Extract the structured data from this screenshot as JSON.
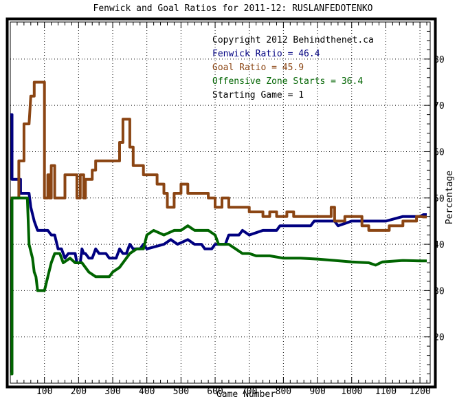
{
  "chart_data": {
    "type": "line",
    "title": "Fenwick and Goal Ratios for 2011-12: RUSLANFEDOTENKO",
    "xlabel": "Game Number",
    "ylabel": "Percentage",
    "xlim": [
      0,
      1230
    ],
    "ylim": [
      10,
      88
    ],
    "x_ticks": [
      100,
      200,
      300,
      400,
      500,
      600,
      700,
      800,
      900,
      1000,
      1100,
      1200
    ],
    "y_ticks": [
      20,
      30,
      40,
      50,
      60,
      70,
      80
    ],
    "grid": true,
    "legend_position": "top-right",
    "annotations": [
      "Copyright 2012 Behindthenet.ca",
      "Fenwick Ratio = 46.4",
      "Goal Ratio = 45.9",
      "Offensive Zone Starts = 36.4",
      "Starting Game = 1"
    ],
    "series": [
      {
        "name": "Fenwick Ratio",
        "color": "#000080",
        "points": [
          [
            0,
            68
          ],
          [
            5,
            68
          ],
          [
            5,
            54
          ],
          [
            30,
            54
          ],
          [
            30,
            51
          ],
          [
            55,
            51
          ],
          [
            60,
            48
          ],
          [
            70,
            45
          ],
          [
            80,
            43
          ],
          [
            110,
            43
          ],
          [
            120,
            42
          ],
          [
            130,
            42
          ],
          [
            140,
            39
          ],
          [
            150,
            39
          ],
          [
            160,
            37
          ],
          [
            170,
            38
          ],
          [
            190,
            38
          ],
          [
            195,
            36
          ],
          [
            205,
            36
          ],
          [
            210,
            39
          ],
          [
            215,
            38
          ],
          [
            220,
            38
          ],
          [
            230,
            37
          ],
          [
            240,
            37
          ],
          [
            250,
            39
          ],
          [
            260,
            38
          ],
          [
            280,
            38
          ],
          [
            290,
            37
          ],
          [
            310,
            37
          ],
          [
            320,
            39
          ],
          [
            330,
            38
          ],
          [
            340,
            38
          ],
          [
            350,
            40
          ],
          [
            360,
            39
          ],
          [
            380,
            39
          ],
          [
            390,
            40
          ],
          [
            400,
            39
          ],
          [
            450,
            40
          ],
          [
            470,
            41
          ],
          [
            490,
            40
          ],
          [
            520,
            41
          ],
          [
            540,
            40
          ],
          [
            560,
            40
          ],
          [
            570,
            39
          ],
          [
            590,
            39
          ],
          [
            600,
            40
          ],
          [
            630,
            40
          ],
          [
            640,
            42
          ],
          [
            670,
            42
          ],
          [
            680,
            43
          ],
          [
            700,
            42
          ],
          [
            740,
            43
          ],
          [
            780,
            43
          ],
          [
            790,
            44
          ],
          [
            880,
            44
          ],
          [
            890,
            45
          ],
          [
            950,
            45
          ],
          [
            960,
            44
          ],
          [
            1000,
            45
          ],
          [
            1100,
            45
          ],
          [
            1150,
            46
          ],
          [
            1200,
            46
          ],
          [
            1210,
            46.4
          ],
          [
            1220,
            46.4
          ]
        ]
      },
      {
        "name": "Goal Ratio",
        "color": "#8B4513",
        "points": [
          [
            0,
            50
          ],
          [
            25,
            50
          ],
          [
            25,
            58
          ],
          [
            40,
            58
          ],
          [
            40,
            66
          ],
          [
            55,
            66
          ],
          [
            60,
            72
          ],
          [
            70,
            72
          ],
          [
            70,
            75
          ],
          [
            100,
            75
          ],
          [
            100,
            50
          ],
          [
            110,
            50
          ],
          [
            110,
            55
          ],
          [
            115,
            55
          ],
          [
            115,
            50
          ],
          [
            120,
            50
          ],
          [
            120,
            57
          ],
          [
            130,
            57
          ],
          [
            130,
            50
          ],
          [
            160,
            50
          ],
          [
            160,
            55
          ],
          [
            195,
            55
          ],
          [
            195,
            50
          ],
          [
            205,
            50
          ],
          [
            205,
            55
          ],
          [
            215,
            55
          ],
          [
            215,
            50
          ],
          [
            220,
            50
          ],
          [
            220,
            54
          ],
          [
            240,
            54
          ],
          [
            240,
            56
          ],
          [
            250,
            56
          ],
          [
            250,
            58
          ],
          [
            320,
            58
          ],
          [
            320,
            62
          ],
          [
            330,
            62
          ],
          [
            330,
            67
          ],
          [
            350,
            67
          ],
          [
            350,
            61
          ],
          [
            360,
            61
          ],
          [
            360,
            57
          ],
          [
            390,
            57
          ],
          [
            390,
            55
          ],
          [
            430,
            55
          ],
          [
            430,
            53
          ],
          [
            450,
            53
          ],
          [
            450,
            51
          ],
          [
            460,
            51
          ],
          [
            460,
            48
          ],
          [
            480,
            48
          ],
          [
            480,
            51
          ],
          [
            500,
            51
          ],
          [
            500,
            53
          ],
          [
            520,
            53
          ],
          [
            520,
            51
          ],
          [
            580,
            51
          ],
          [
            580,
            50
          ],
          [
            600,
            50
          ],
          [
            600,
            48
          ],
          [
            620,
            48
          ],
          [
            620,
            50
          ],
          [
            640,
            50
          ],
          [
            640,
            48
          ],
          [
            700,
            48
          ],
          [
            700,
            47
          ],
          [
            740,
            47
          ],
          [
            740,
            46
          ],
          [
            760,
            46
          ],
          [
            760,
            47
          ],
          [
            780,
            47
          ],
          [
            780,
            46
          ],
          [
            810,
            46
          ],
          [
            810,
            47
          ],
          [
            830,
            47
          ],
          [
            830,
            46
          ],
          [
            940,
            46
          ],
          [
            940,
            48
          ],
          [
            950,
            48
          ],
          [
            950,
            45
          ],
          [
            980,
            45
          ],
          [
            980,
            46
          ],
          [
            1030,
            46
          ],
          [
            1030,
            44
          ],
          [
            1050,
            44
          ],
          [
            1050,
            43
          ],
          [
            1110,
            43
          ],
          [
            1110,
            44
          ],
          [
            1150,
            44
          ],
          [
            1150,
            45
          ],
          [
            1190,
            45
          ],
          [
            1190,
            46
          ],
          [
            1200,
            46
          ],
          [
            1210,
            45.9
          ],
          [
            1220,
            45.9
          ]
        ]
      },
      {
        "name": "Offensive Zone Starts",
        "color": "#006400",
        "points": [
          [
            0,
            12
          ],
          [
            5,
            12
          ],
          [
            5,
            50
          ],
          [
            50,
            50
          ],
          [
            55,
            40
          ],
          [
            65,
            37
          ],
          [
            70,
            34
          ],
          [
            75,
            33
          ],
          [
            80,
            30
          ],
          [
            100,
            30
          ],
          [
            110,
            33
          ],
          [
            120,
            36
          ],
          [
            130,
            38
          ],
          [
            145,
            38
          ],
          [
            155,
            36
          ],
          [
            175,
            37
          ],
          [
            190,
            36
          ],
          [
            200,
            36
          ],
          [
            210,
            36
          ],
          [
            230,
            34
          ],
          [
            250,
            33
          ],
          [
            290,
            33
          ],
          [
            300,
            34
          ],
          [
            320,
            35
          ],
          [
            330,
            36
          ],
          [
            350,
            38
          ],
          [
            370,
            39
          ],
          [
            390,
            39
          ],
          [
            400,
            42
          ],
          [
            420,
            43
          ],
          [
            450,
            42
          ],
          [
            480,
            43
          ],
          [
            500,
            43
          ],
          [
            520,
            44
          ],
          [
            540,
            43
          ],
          [
            580,
            43
          ],
          [
            600,
            42
          ],
          [
            610,
            40
          ],
          [
            640,
            40
          ],
          [
            660,
            39
          ],
          [
            680,
            38
          ],
          [
            700,
            38
          ],
          [
            720,
            37.5
          ],
          [
            760,
            37.5
          ],
          [
            800,
            37
          ],
          [
            850,
            37
          ],
          [
            900,
            36.8
          ],
          [
            950,
            36.5
          ],
          [
            1000,
            36.2
          ],
          [
            1050,
            36
          ],
          [
            1070,
            35.5
          ],
          [
            1090,
            36.2
          ],
          [
            1150,
            36.5
          ],
          [
            1200,
            36.4
          ],
          [
            1220,
            36.4
          ]
        ]
      }
    ]
  }
}
